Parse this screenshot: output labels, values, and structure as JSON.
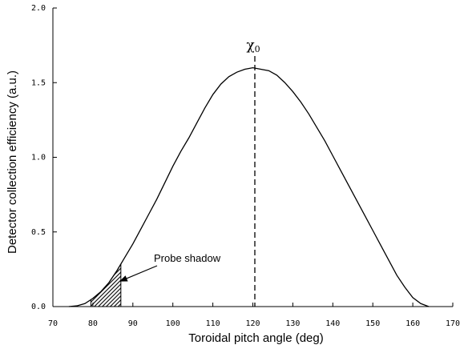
{
  "chart_data": {
    "type": "line",
    "title": "",
    "xlabel": "Toroidal pitch angle (deg)",
    "ylabel": "Detector collection efficiency (a.u.)",
    "xlim": [
      70,
      170
    ],
    "ylim": [
      0,
      2.0
    ],
    "x_ticks": [
      70,
      80,
      90,
      100,
      110,
      120,
      130,
      140,
      150,
      160,
      170
    ],
    "x_tick_labels": [
      "70",
      "80",
      "90",
      "100",
      "110",
      "120",
      "130",
      "140",
      "150",
      "160",
      "170"
    ],
    "y_ticks": [
      0,
      0.5,
      1.0,
      1.5,
      2.0
    ],
    "y_tick_labels": [
      "0.0",
      "0.5",
      "1.0",
      "1.5",
      "2.0"
    ],
    "grid": false,
    "series": [
      {
        "x": [
          74,
          76,
          78,
          80,
          82,
          84,
          86,
          88,
          90,
          92,
          94,
          96,
          98,
          100,
          102,
          104,
          106,
          108,
          110,
          112,
          114,
          116,
          118,
          120,
          122,
          124,
          126,
          128,
          130,
          132,
          134,
          136,
          138,
          140,
          142,
          144,
          146,
          148,
          150,
          152,
          154,
          156,
          158,
          160,
          162,
          164
        ],
        "y": [
          0.0,
          0.005,
          0.02,
          0.055,
          0.1,
          0.16,
          0.24,
          0.33,
          0.42,
          0.52,
          0.62,
          0.72,
          0.83,
          0.94,
          1.04,
          1.13,
          1.23,
          1.33,
          1.42,
          1.49,
          1.54,
          1.57,
          1.59,
          1.6,
          1.59,
          1.58,
          1.55,
          1.5,
          1.44,
          1.37,
          1.29,
          1.2,
          1.11,
          1.01,
          0.91,
          0.81,
          0.71,
          0.61,
          0.51,
          0.41,
          0.31,
          0.21,
          0.13,
          0.06,
          0.02,
          0.0
        ]
      }
    ],
    "shaded_region": {
      "x_from": 79.5,
      "x_to": 87,
      "pattern": "hatched"
    },
    "vline": {
      "x": 120.5,
      "label": "χ",
      "label_sub": "0"
    },
    "annotations": [
      {
        "text": "Probe shadow",
        "target_x": 86,
        "target_y": 0.17
      }
    ]
  }
}
